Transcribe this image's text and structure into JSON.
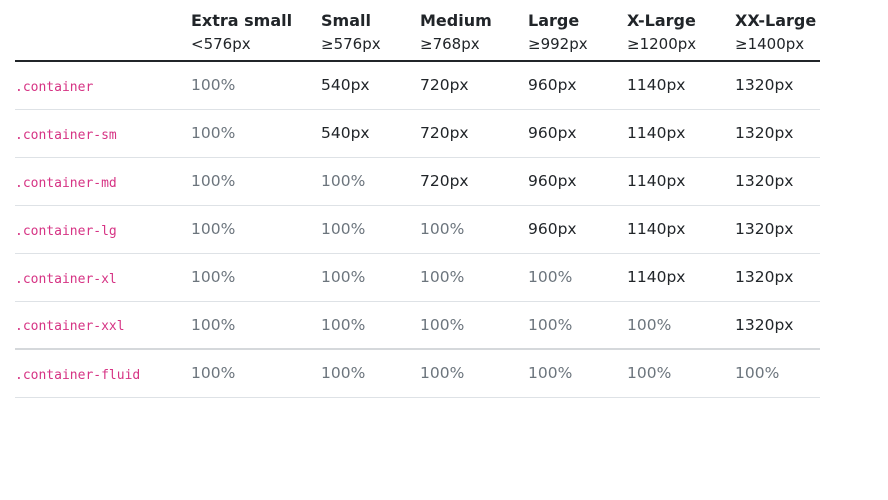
{
  "table": {
    "headers": [
      {
        "name": "",
        "range": ""
      },
      {
        "name": "Extra small",
        "range": "<576px"
      },
      {
        "name": "Small",
        "range": "≥576px"
      },
      {
        "name": "Medium",
        "range": "≥768px"
      },
      {
        "name": "Large",
        "range": "≥992px"
      },
      {
        "name": "X-Large",
        "range": "≥1200px"
      },
      {
        "name": "XX-Large",
        "range": "≥1400px"
      }
    ],
    "rows": [
      {
        "cls": ".container",
        "cells": [
          "100%",
          "540px",
          "720px",
          "960px",
          "1140px",
          "1320px"
        ],
        "muted": [
          true,
          false,
          false,
          false,
          false,
          false
        ]
      },
      {
        "cls": ".container-sm",
        "cells": [
          "100%",
          "540px",
          "720px",
          "960px",
          "1140px",
          "1320px"
        ],
        "muted": [
          true,
          false,
          false,
          false,
          false,
          false
        ]
      },
      {
        "cls": ".container-md",
        "cells": [
          "100%",
          "100%",
          "720px",
          "960px",
          "1140px",
          "1320px"
        ],
        "muted": [
          true,
          true,
          false,
          false,
          false,
          false
        ]
      },
      {
        "cls": ".container-lg",
        "cells": [
          "100%",
          "100%",
          "100%",
          "960px",
          "1140px",
          "1320px"
        ],
        "muted": [
          true,
          true,
          true,
          false,
          false,
          false
        ]
      },
      {
        "cls": ".container-xl",
        "cells": [
          "100%",
          "100%",
          "100%",
          "100%",
          "1140px",
          "1320px"
        ],
        "muted": [
          true,
          true,
          true,
          true,
          false,
          false
        ]
      },
      {
        "cls": ".container-xxl",
        "cells": [
          "100%",
          "100%",
          "100%",
          "100%",
          "100%",
          "1320px"
        ],
        "muted": [
          true,
          true,
          true,
          true,
          true,
          false
        ]
      },
      {
        "cls": ".container-fluid",
        "cells": [
          "100%",
          "100%",
          "100%",
          "100%",
          "100%",
          "100%"
        ],
        "muted": [
          true,
          true,
          true,
          true,
          true,
          true
        ]
      }
    ]
  },
  "colors": {
    "class_name": "#d63384",
    "muted_value": "#6c757d",
    "dark_value": "#212529",
    "row_border": "#dee2e6",
    "header_border": "#212529"
  }
}
